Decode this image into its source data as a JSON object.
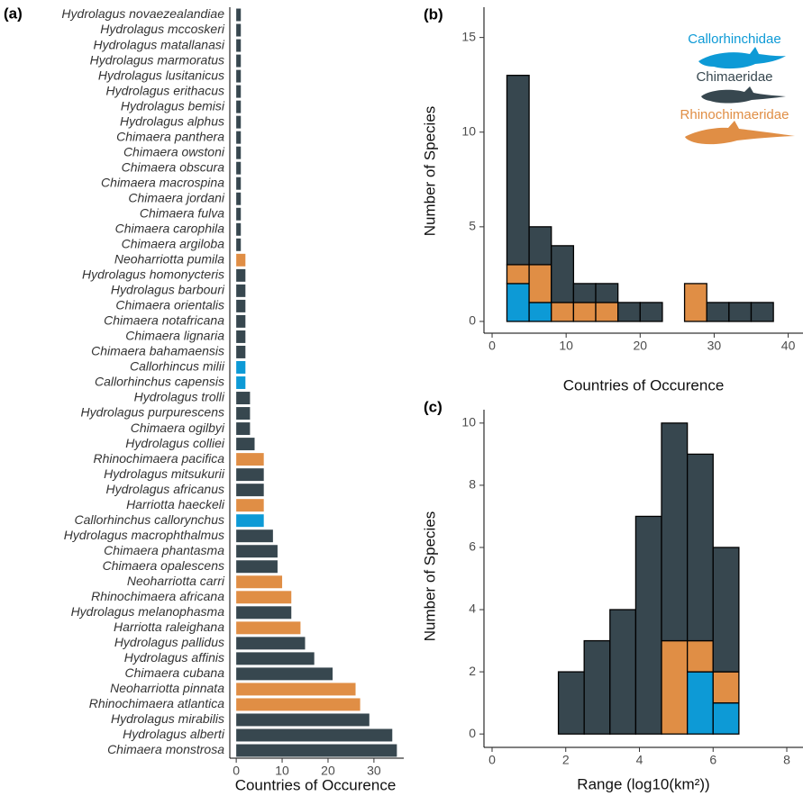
{
  "chart_data": [
    {
      "type": "bar",
      "panel_label": "(a)",
      "orientation": "horizontal",
      "categories": [
        "Hydrolagus novaezealandiae",
        "Hydrolagus mccoskeri",
        "Hydrolagus matallanasi",
        "Hydrolagus marmoratus",
        "Hydrolagus lusitanicus",
        "Hydrolagus erithacus",
        "Hydrolagus bemisi",
        "Hydrolagus alphus",
        "Chimaera panthera",
        "Chimaera owstoni",
        "Chimaera obscura",
        "Chimaera macrospina",
        "Chimaera jordani",
        "Chimaera fulva",
        "Chimaera carophila",
        "Chimaera argiloba",
        "Neoharriotta pumila",
        "Hydrolagus homonycteris",
        "Hydrolagus barbouri",
        "Chimaera orientalis",
        "Chimaera notafricana",
        "Chimaera lignaria",
        "Chimaera bahamaensis",
        "Callorhincus milii",
        "Callorhinchus capensis",
        "Hydrolagus trolli",
        "Hydrolagus purpurescens",
        "Chimaera ogilbyi",
        "Hydrolagus colliei",
        "Rhinochimaera pacifica",
        "Hydrolagus mitsukurii",
        "Hydrolagus africanus",
        "Harriotta haeckeli",
        "Callorhinchus callorynchus",
        "Hydrolagus macrophthalmus",
        "Chimaera phantasma",
        "Chimaera opalescens",
        "Neoharriotta carri",
        "Rhinochimaera africana",
        "Hydrolagus melanophasma",
        "Harriotta raleighana",
        "Hydrolagus pallidus",
        "Hydrolagus affinis",
        "Chimaera cubana",
        "Neoharriotta pinnata",
        "Rhinochimaera atlantica",
        "Hydrolagus mirabilis",
        "Hydrolagus alberti",
        "Chimaera monstrosa"
      ],
      "values": [
        1,
        1,
        1,
        1,
        1,
        1,
        1,
        1,
        1,
        1,
        1,
        1,
        1,
        1,
        1,
        1,
        2,
        2,
        2,
        2,
        2,
        2,
        2,
        2,
        2,
        3,
        3,
        3,
        4,
        6,
        6,
        6,
        6,
        6,
        8,
        9,
        9,
        10,
        12,
        12,
        14,
        15,
        17,
        21,
        26,
        27,
        29,
        34,
        35
      ],
      "colors": [
        "#37474f",
        "#37474f",
        "#37474f",
        "#37474f",
        "#37474f",
        "#37474f",
        "#37474f",
        "#37474f",
        "#37474f",
        "#37474f",
        "#37474f",
        "#37474f",
        "#37474f",
        "#37474f",
        "#37474f",
        "#37474f",
        "#e08e45",
        "#37474f",
        "#37474f",
        "#37474f",
        "#37474f",
        "#37474f",
        "#37474f",
        "#0d9ad6",
        "#0d9ad6",
        "#37474f",
        "#37474f",
        "#37474f",
        "#37474f",
        "#e08e45",
        "#37474f",
        "#37474f",
        "#e08e45",
        "#0d9ad6",
        "#37474f",
        "#37474f",
        "#37474f",
        "#e08e45",
        "#e08e45",
        "#37474f",
        "#e08e45",
        "#37474f",
        "#37474f",
        "#37474f",
        "#e08e45",
        "#e08e45",
        "#37474f",
        "#37474f",
        "#37474f"
      ],
      "x_label": "Countries of Occurence",
      "xlim": [
        -1.4,
        36.5
      ],
      "xticks": [
        0,
        10,
        20,
        30
      ]
    },
    {
      "type": "histogram",
      "panel_label": "(b)",
      "bins": [
        2,
        5,
        8,
        11,
        14,
        17,
        20,
        23,
        26,
        29,
        32,
        35,
        38
      ],
      "series": [
        {
          "name": "Callorhinchidae",
          "color": "#0d9ad6",
          "values": [
            2,
            1,
            0,
            0,
            0,
            0,
            0,
            0,
            0,
            0,
            0,
            0
          ]
        },
        {
          "name": "Rhinochimaeridae",
          "color": "#e08e45",
          "values": [
            1,
            2,
            1,
            1,
            1,
            0,
            0,
            0,
            2,
            0,
            0,
            0
          ]
        },
        {
          "name": "Chimaeridae",
          "color": "#37474f",
          "values": [
            10,
            2,
            3,
            1,
            1,
            1,
            1,
            0,
            0,
            1,
            1,
            1
          ]
        }
      ],
      "x_label": "Countries of Occurence",
      "y_label": "Number of Species",
      "xlim": [
        -1.1,
        42
      ],
      "xticks": [
        0,
        10,
        20,
        30,
        40
      ],
      "ylim": [
        -0.62,
        16.6
      ],
      "yticks": [
        0,
        5,
        10,
        15
      ]
    },
    {
      "type": "histogram",
      "panel_label": "(c)",
      "bins": [
        0.4,
        1.1,
        1.8,
        2.5,
        3.2,
        3.9,
        4.6,
        5.3,
        6.0,
        6.7,
        7.4
      ],
      "series": [
        {
          "name": "Callorhinchidae",
          "color": "#0d9ad6",
          "values": [
            0,
            0,
            0,
            0,
            0,
            0,
            0,
            2,
            1,
            0
          ]
        },
        {
          "name": "Rhinochimaeridae",
          "color": "#e08e45",
          "values": [
            0,
            0,
            0,
            0,
            0,
            0,
            3,
            1,
            1,
            0
          ]
        },
        {
          "name": "Chimaeridae",
          "color": "#37474f",
          "values": [
            0,
            0,
            2,
            3,
            4,
            7,
            7,
            6,
            4,
            0
          ]
        }
      ],
      "x_label": "Range (log10(km²))",
      "y_label": "Number of Species",
      "xlim": [
        -0.22,
        8.44
      ],
      "xticks": [
        0,
        2,
        4,
        6,
        8
      ],
      "ylim": [
        -0.43,
        10.43
      ],
      "yticks": [
        0,
        2,
        4,
        6,
        8,
        10
      ]
    }
  ]
}
